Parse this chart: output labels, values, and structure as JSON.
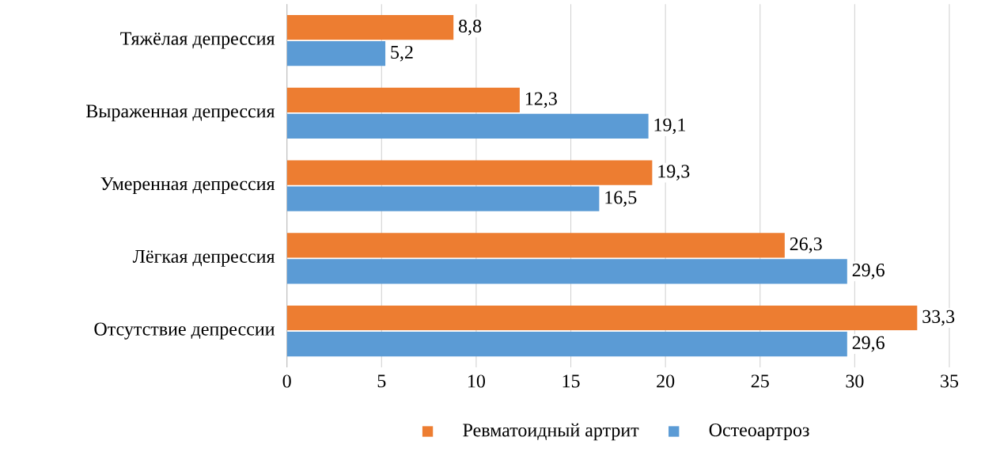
{
  "chart_data": {
    "type": "bar",
    "orientation": "horizontal",
    "categories": [
      "Тяжёлая депрессия",
      "Выраженная депрессия",
      "Умеренная депрессия",
      "Лёгкая депрессия",
      "Отсутствие депрессии"
    ],
    "series": [
      {
        "name": "Ревматоидный артрит",
        "color": "#ed7d31",
        "values": [
          8.8,
          12.3,
          19.3,
          26.3,
          33.3
        ],
        "value_labels": [
          "8,8",
          "12,3",
          "19,3",
          "26,3",
          "33,3"
        ]
      },
      {
        "name": "Остеоартроз",
        "color": "#5b9bd5",
        "values": [
          5.2,
          19.1,
          16.5,
          29.6,
          29.6
        ],
        "value_labels": [
          "5,2",
          "19,1",
          "16,5",
          "29,6",
          "29,6"
        ]
      }
    ],
    "xlim": [
      0,
      35
    ],
    "xticks": [
      0,
      5,
      10,
      15,
      20,
      25,
      30,
      35
    ],
    "grid": "x",
    "legend": "bottom"
  }
}
